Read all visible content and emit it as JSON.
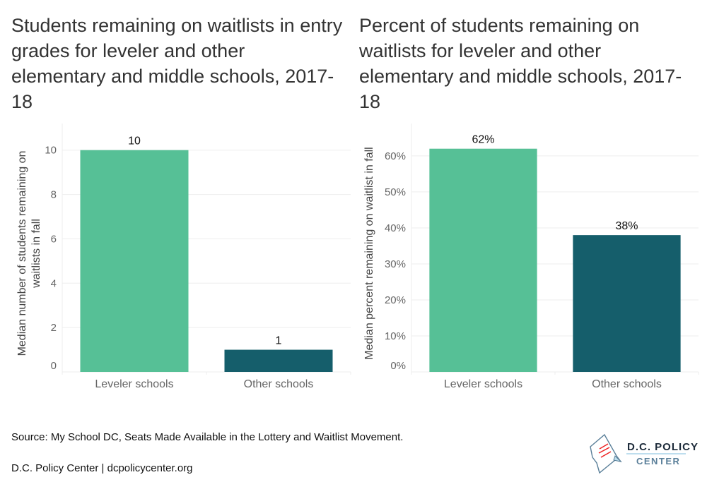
{
  "chart_data": [
    {
      "type": "bar",
      "title": "Students remaining on waitlists in entry grades for leveler and other elementary and middle schools, 2017-18",
      "ylabel": [
        "Median number of students remaining on",
        "waitlists in fall"
      ],
      "categories": [
        "Leveler schools",
        "Other schools"
      ],
      "values": [
        10,
        1
      ],
      "data_labels": [
        "10",
        "1"
      ],
      "yticks": [
        0,
        2,
        4,
        6,
        8,
        10
      ],
      "ytick_labels": [
        "0",
        "2",
        "4",
        "6",
        "8",
        "10"
      ],
      "ylim": [
        0,
        11.2
      ],
      "grid": true,
      "colors": [
        "#56c096",
        "#155e6b"
      ]
    },
    {
      "type": "bar",
      "title": "Percent of students remaining on waitlists for leveler and other elementary and middle schools, 2017-18",
      "ylabel": [
        "Median percent remaining on waitlist in fall"
      ],
      "categories": [
        "Leveler schools",
        "Other schools"
      ],
      "values": [
        62,
        38
      ],
      "data_labels": [
        "62%",
        "38%"
      ],
      "yticks": [
        0,
        10,
        20,
        30,
        40,
        50,
        60
      ],
      "ytick_labels": [
        "0%",
        "10%",
        "20%",
        "30%",
        "40%",
        "50%",
        "60%"
      ],
      "ylim": [
        0,
        69
      ],
      "grid": true,
      "colors": [
        "#56c096",
        "#155e6b"
      ]
    }
  ],
  "source": "Source: My School DC, Seats Made Available in the Lottery and Waitlist Movement.",
  "footer": "D.C. Policy Center | dcpolicycenter.org",
  "logo": {
    "line1": "D.C. POLICY",
    "line2": "CENTER"
  }
}
